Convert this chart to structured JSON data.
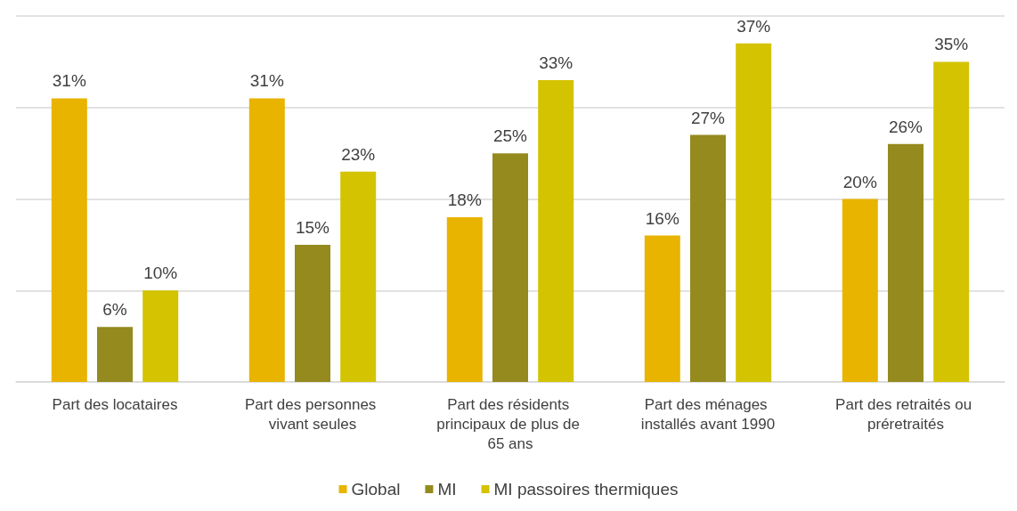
{
  "chart_data": {
    "type": "bar",
    "categories": [
      "Part des locataires",
      "Part des personnes vivant seules",
      "Part des résidents principaux de plus de 65 ans",
      "Part des ménages installés avant 1990",
      "Part des retraités ou préretraités"
    ],
    "series": [
      {
        "name": "Global",
        "color": "#e8b400",
        "values": [
          31,
          31,
          18,
          16,
          20
        ],
        "value_labels": [
          "31%",
          "31%",
          "18%",
          "16%",
          "20%"
        ]
      },
      {
        "name": "MI",
        "color": "#948a1e",
        "values": [
          6,
          15,
          25,
          27,
          26
        ],
        "value_labels": [
          "6%",
          "15%",
          "25%",
          "27%",
          "26%"
        ]
      },
      {
        "name": "MI passoires thermiques",
        "color": "#d4c300",
        "values": [
          10,
          23,
          33,
          37,
          35
        ],
        "value_labels": [
          "10%",
          "23%",
          "33%",
          "37%",
          "35%"
        ]
      }
    ],
    "tick_labels": "x",
    "grid": "y",
    "legend": "bottom"
  }
}
